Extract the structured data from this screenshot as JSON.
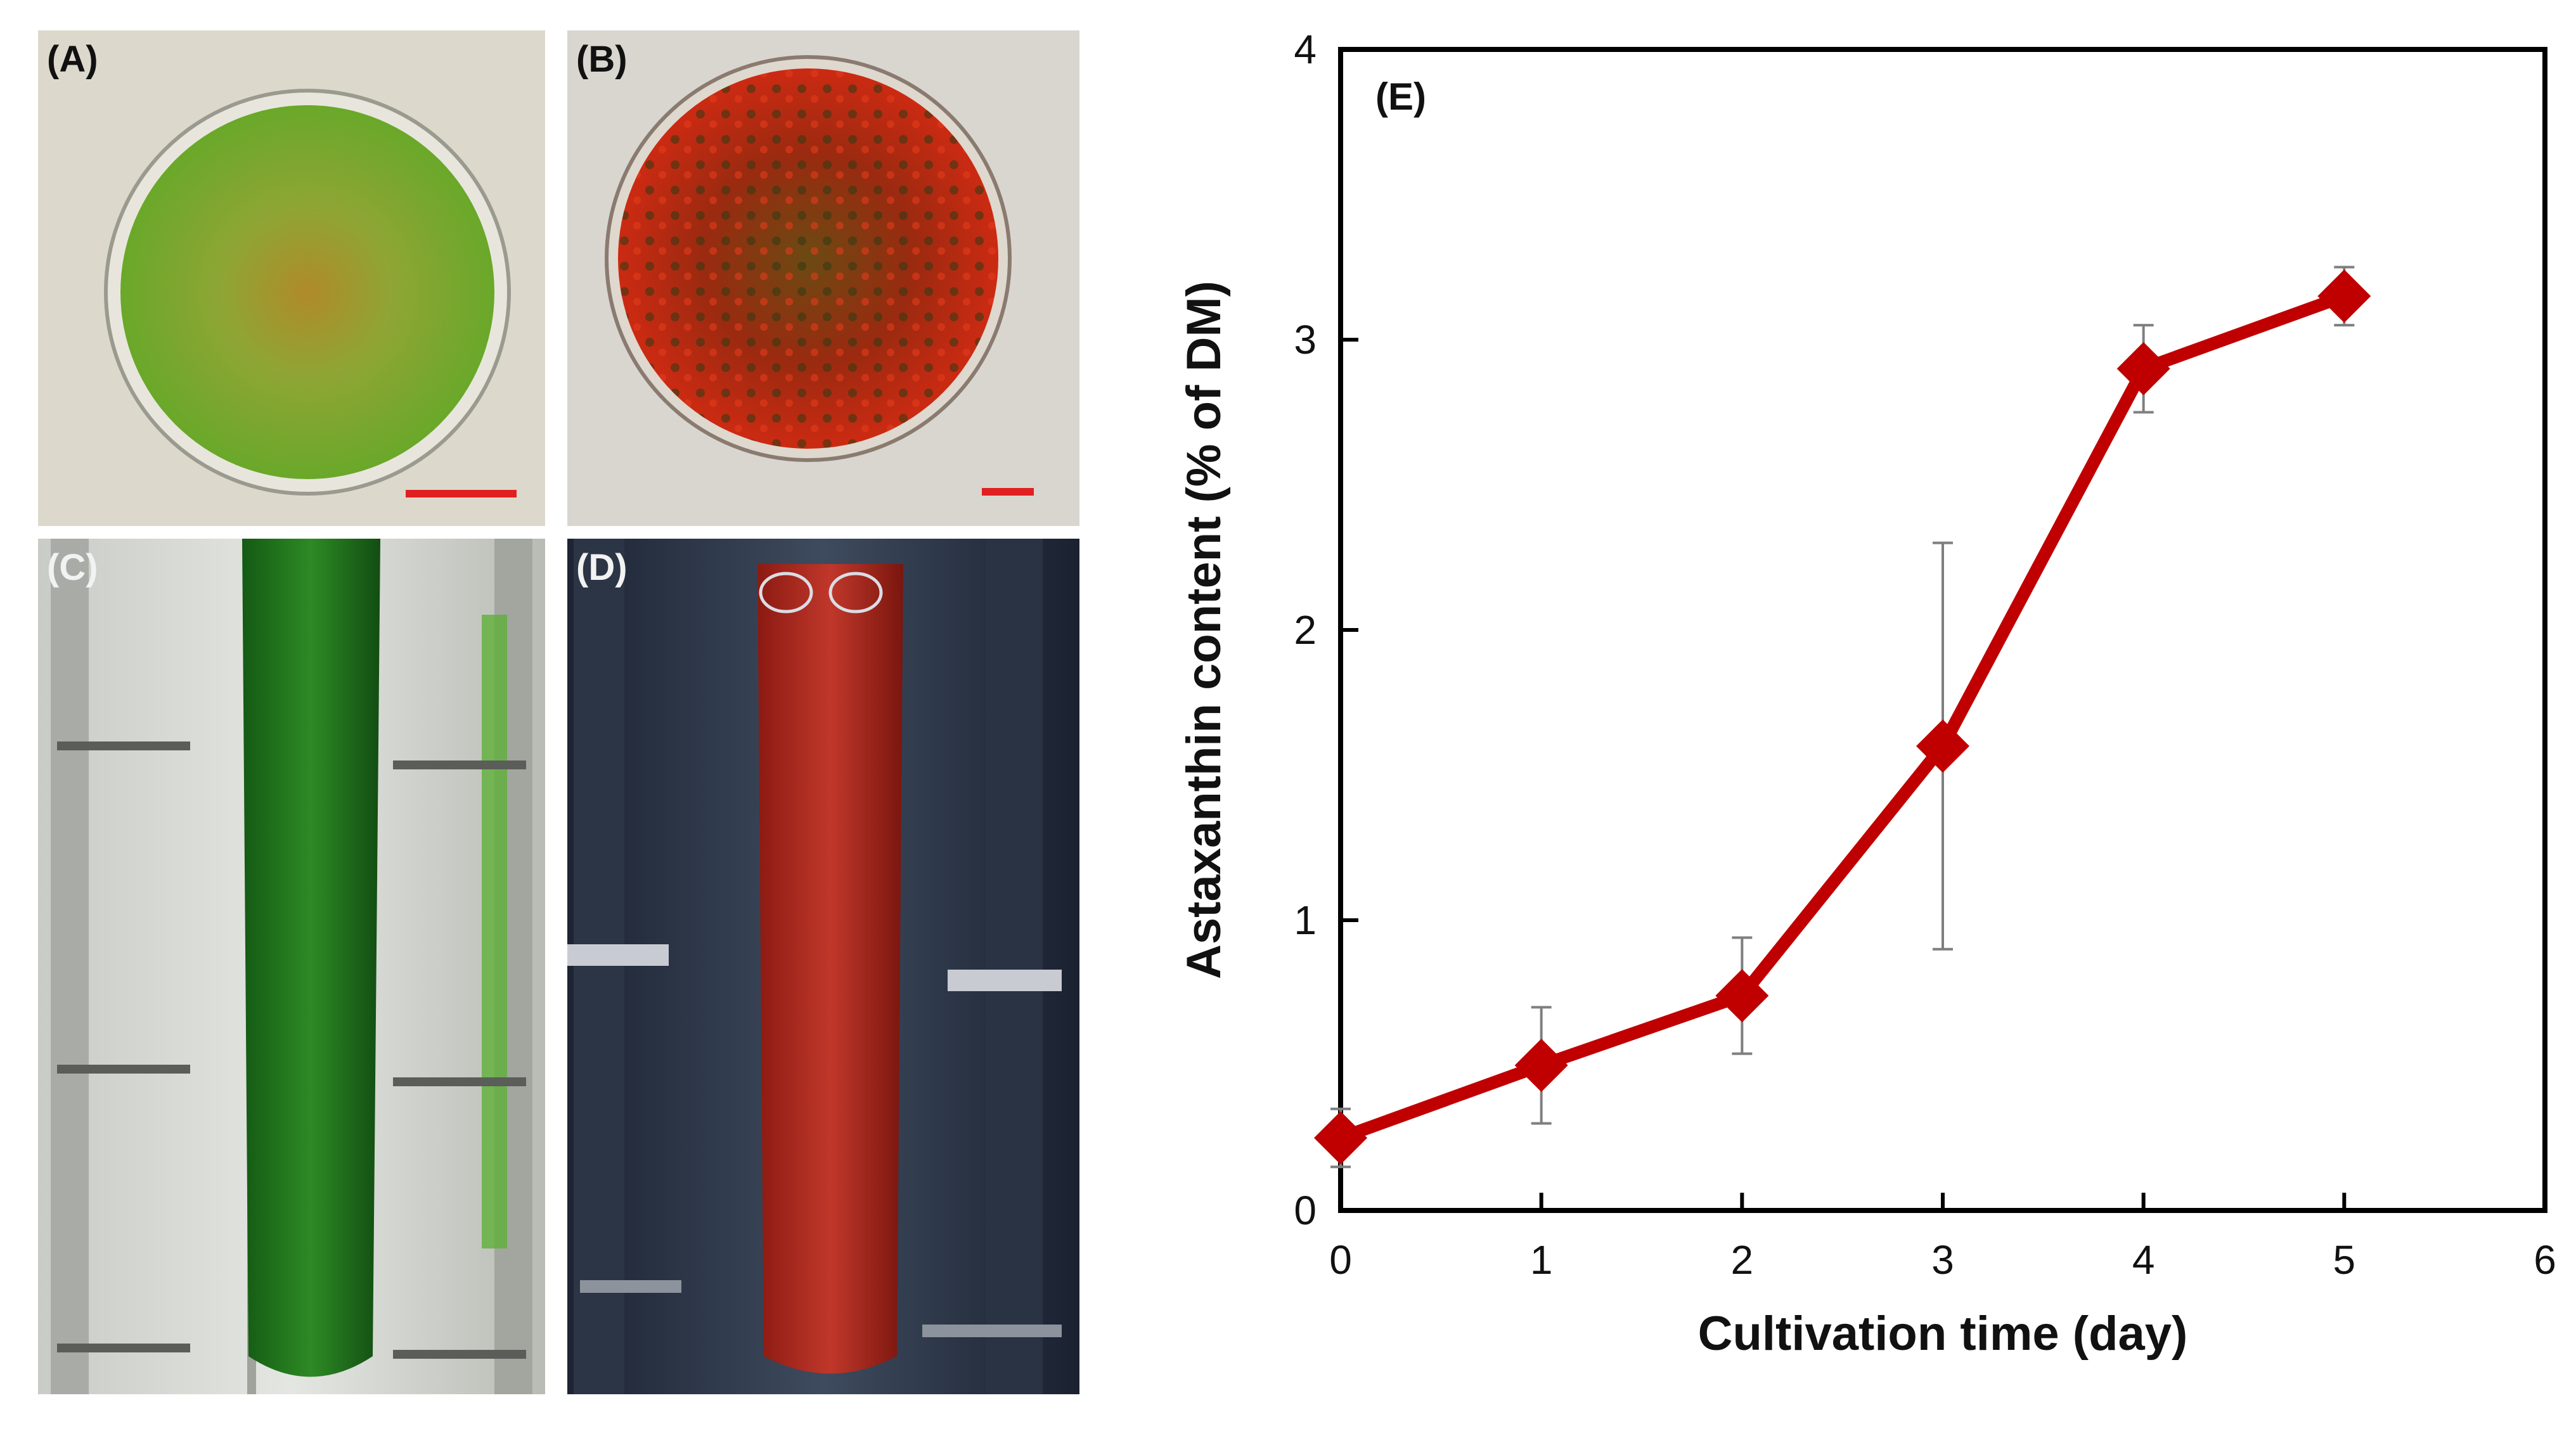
{
  "panels": {
    "a": {
      "label": "(A)"
    },
    "b": {
      "label": "(B)"
    },
    "c": {
      "label": "(C)"
    },
    "d": {
      "label": "(D)"
    }
  },
  "colors": {
    "series": "#c00000",
    "error_bar": "#7f7f7f",
    "scale_bar": "#e02020",
    "green_culture": "#1f7a1f",
    "red_culture": "#b02018"
  },
  "chart_data": {
    "type": "line",
    "panel_label": "(E)",
    "xlabel": "Cultivation time (day)",
    "ylabel": "Astaxanthin content (% of DM)",
    "xlim": [
      0,
      6
    ],
    "ylim": [
      0,
      4
    ],
    "xticks": [
      "0",
      "1",
      "2",
      "3",
      "4",
      "5",
      "6"
    ],
    "yticks": [
      "0",
      "1",
      "2",
      "3",
      "4"
    ],
    "grid": false,
    "marker": "diamond",
    "series": [
      {
        "x": [
          0,
          1,
          2,
          3,
          4,
          5
        ],
        "y": [
          0.25,
          0.5,
          0.74,
          1.6,
          2.9,
          3.15
        ],
        "error": [
          0.1,
          0.2,
          0.2,
          0.7,
          0.15,
          0.1
        ]
      }
    ]
  }
}
